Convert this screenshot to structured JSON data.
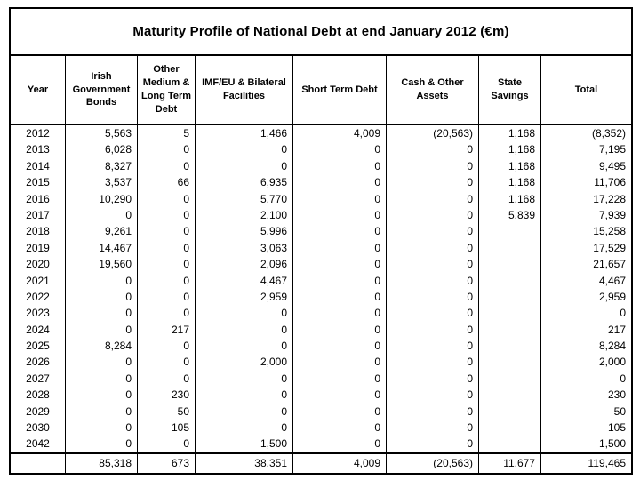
{
  "title": "Maturity Profile of National Debt at end January 2012 (€m)",
  "table": {
    "columns": [
      "Year",
      "Irish Government Bonds",
      "Other Medium & Long Term Debt",
      "IMF/EU & Bilateral Facilities",
      "Short Term Debt",
      "Cash & Other Assets",
      "State Savings",
      "Total"
    ],
    "rows": [
      [
        "2012",
        "5,563",
        "5",
        "1,466",
        "4,009",
        "(20,563)",
        "1,168",
        "(8,352)"
      ],
      [
        "2013",
        "6,028",
        "0",
        "0",
        "0",
        "0",
        "1,168",
        "7,195"
      ],
      [
        "2014",
        "8,327",
        "0",
        "0",
        "0",
        "0",
        "1,168",
        "9,495"
      ],
      [
        "2015",
        "3,537",
        "66",
        "6,935",
        "0",
        "0",
        "1,168",
        "11,706"
      ],
      [
        "2016",
        "10,290",
        "0",
        "5,770",
        "0",
        "0",
        "1,168",
        "17,228"
      ],
      [
        "2017",
        "0",
        "0",
        "2,100",
        "0",
        "0",
        "5,839",
        "7,939"
      ],
      [
        "2018",
        "9,261",
        "0",
        "5,996",
        "0",
        "0",
        "",
        "15,258"
      ],
      [
        "2019",
        "14,467",
        "0",
        "3,063",
        "0",
        "0",
        "",
        "17,529"
      ],
      [
        "2020",
        "19,560",
        "0",
        "2,096",
        "0",
        "0",
        "",
        "21,657"
      ],
      [
        "2021",
        "0",
        "0",
        "4,467",
        "0",
        "0",
        "",
        "4,467"
      ],
      [
        "2022",
        "0",
        "0",
        "2,959",
        "0",
        "0",
        "",
        "2,959"
      ],
      [
        "2023",
        "0",
        "0",
        "0",
        "0",
        "0",
        "",
        "0"
      ],
      [
        "2024",
        "0",
        "217",
        "0",
        "0",
        "0",
        "",
        "217"
      ],
      [
        "2025",
        "8,284",
        "0",
        "0",
        "0",
        "0",
        "",
        "8,284"
      ],
      [
        "2026",
        "0",
        "0",
        "2,000",
        "0",
        "0",
        "",
        "2,000"
      ],
      [
        "2027",
        "0",
        "0",
        "0",
        "0",
        "0",
        "",
        "0"
      ],
      [
        "2028",
        "0",
        "230",
        "0",
        "0",
        "0",
        "",
        "230"
      ],
      [
        "2029",
        "0",
        "50",
        "0",
        "0",
        "0",
        "",
        "50"
      ],
      [
        "2030",
        "0",
        "105",
        "0",
        "0",
        "0",
        "",
        "105"
      ],
      [
        "2042",
        "0",
        "0",
        "1,500",
        "0",
        "0",
        "",
        "1,500"
      ]
    ],
    "totals": [
      "",
      "85,318",
      "673",
      "38,351",
      "4,009",
      "(20,563)",
      "11,677",
      "119,465"
    ]
  },
  "colors": {
    "border": "#000000",
    "text": "#000000",
    "background": "#ffffff"
  }
}
